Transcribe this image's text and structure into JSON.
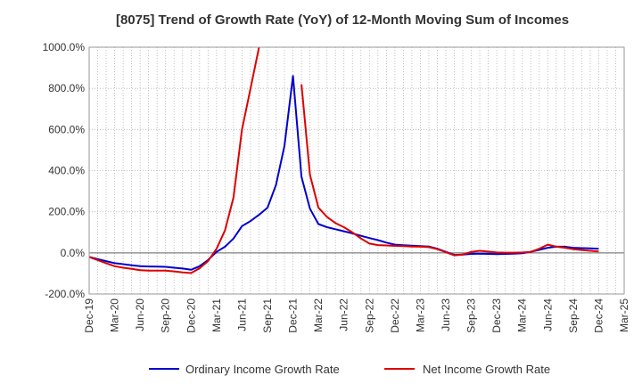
{
  "chart_data": {
    "type": "line",
    "title": "[8075]  Trend of Growth Rate (YoY) of 12-Month Moving Sum of Incomes",
    "xlabel": "",
    "ylabel": "",
    "ylim": [
      -200,
      1000
    ],
    "y_ticks": [
      -200,
      0,
      200,
      400,
      600,
      800,
      1000
    ],
    "y_tick_labels": [
      "-200.0%",
      "0.0%",
      "200.0%",
      "400.0%",
      "600.0%",
      "800.0%",
      "1000.0%"
    ],
    "x_ticks": [
      "2019-12",
      "2020-03",
      "2020-06",
      "2020-09",
      "2020-12",
      "2021-03",
      "2021-06",
      "2021-09",
      "2021-12",
      "2022-03",
      "2022-06",
      "2022-09",
      "2022-12",
      "2023-03",
      "2023-06",
      "2023-09",
      "2023-12",
      "2024-03",
      "2024-06",
      "2024-09",
      "2024-12",
      "2025-03"
    ],
    "x_tick_labels": [
      "Dec-19",
      "Mar-20",
      "Jun-20",
      "Sep-20",
      "Dec-20",
      "Mar-21",
      "Jun-21",
      "Sep-21",
      "Dec-21",
      "Mar-22",
      "Jun-22",
      "Sep-22",
      "Dec-22",
      "Mar-23",
      "Jun-23",
      "Sep-23",
      "Dec-23",
      "Mar-24",
      "Jun-24",
      "Sep-24",
      "Dec-24",
      "Mar-25"
    ],
    "grid": true,
    "legend_position": "bottom",
    "series": [
      {
        "name": "Ordinary Income Growth Rate",
        "color": "#0000cc",
        "x": [
          "2019-12",
          "2020-01",
          "2020-02",
          "2020-03",
          "2020-04",
          "2020-05",
          "2020-06",
          "2020-07",
          "2020-08",
          "2020-09",
          "2020-10",
          "2020-11",
          "2020-12",
          "2021-01",
          "2021-02",
          "2021-03",
          "2021-04",
          "2021-05",
          "2021-06",
          "2021-07",
          "2021-08",
          "2021-09",
          "2021-10",
          "2021-11",
          "2021-12",
          "2022-01",
          "2022-02",
          "2022-03",
          "2022-04",
          "2022-05",
          "2022-06",
          "2022-07",
          "2022-08",
          "2022-09",
          "2022-10",
          "2022-11",
          "2022-12",
          "2023-01",
          "2023-02",
          "2023-03",
          "2023-04",
          "2023-05",
          "2023-06",
          "2023-07",
          "2023-08",
          "2023-09",
          "2023-10",
          "2023-11",
          "2023-12",
          "2024-01",
          "2024-02",
          "2024-03",
          "2024-04",
          "2024-05",
          "2024-06",
          "2024-07",
          "2024-08",
          "2024-09",
          "2024-10",
          "2024-11",
          "2024-12"
        ],
        "values": [
          -20,
          -30,
          -40,
          -50,
          -55,
          -60,
          -65,
          -66,
          -67,
          -68,
          -72,
          -76,
          -82,
          -65,
          -35,
          5,
          30,
          70,
          130,
          155,
          185,
          220,
          330,
          520,
          860,
          370,
          215,
          140,
          125,
          115,
          105,
          95,
          83,
          72,
          62,
          50,
          40,
          37,
          35,
          33,
          31,
          20,
          5,
          -10,
          -8,
          -5,
          -4,
          -5,
          -6,
          -5,
          -4,
          -2,
          5,
          15,
          25,
          30,
          30,
          25,
          23,
          22,
          20
        ]
      },
      {
        "name": "Net Income Growth Rate",
        "color": "#dd0000",
        "x": [
          "2019-12",
          "2020-01",
          "2020-02",
          "2020-03",
          "2020-04",
          "2020-05",
          "2020-06",
          "2020-07",
          "2020-08",
          "2020-09",
          "2020-10",
          "2020-11",
          "2020-12",
          "2021-01",
          "2021-02",
          "2021-03",
          "2021-04",
          "2021-05",
          "2021-06",
          "2021-07",
          "2021-08",
          "2021-09",
          "2021-10",
          "2021-11",
          "2021-12",
          "2022-01",
          "2022-02",
          "2022-03",
          "2022-04",
          "2022-05",
          "2022-06",
          "2022-07",
          "2022-08",
          "2022-09",
          "2022-10",
          "2022-11",
          "2022-12",
          "2023-01",
          "2023-02",
          "2023-03",
          "2023-04",
          "2023-05",
          "2023-06",
          "2023-07",
          "2023-08",
          "2023-09",
          "2023-10",
          "2023-11",
          "2023-12",
          "2024-01",
          "2024-02",
          "2024-03",
          "2024-04",
          "2024-05",
          "2024-06",
          "2024-07",
          "2024-08",
          "2024-09",
          "2024-10",
          "2024-11",
          "2024-12"
        ],
        "values": [
          -20,
          -35,
          -50,
          -65,
          -72,
          -78,
          -84,
          -86,
          -86,
          -86,
          -90,
          -95,
          -98,
          -75,
          -40,
          20,
          110,
          270,
          600,
          800,
          1000,
          null,
          null,
          null,
          null,
          820,
          380,
          220,
          175,
          145,
          125,
          100,
          70,
          45,
          38,
          36,
          34,
          33,
          31,
          30,
          28,
          18,
          3,
          -12,
          -8,
          5,
          10,
          6,
          2,
          1,
          1,
          2,
          5,
          20,
          40,
          30,
          25,
          18,
          14,
          10,
          7
        ]
      }
    ]
  }
}
